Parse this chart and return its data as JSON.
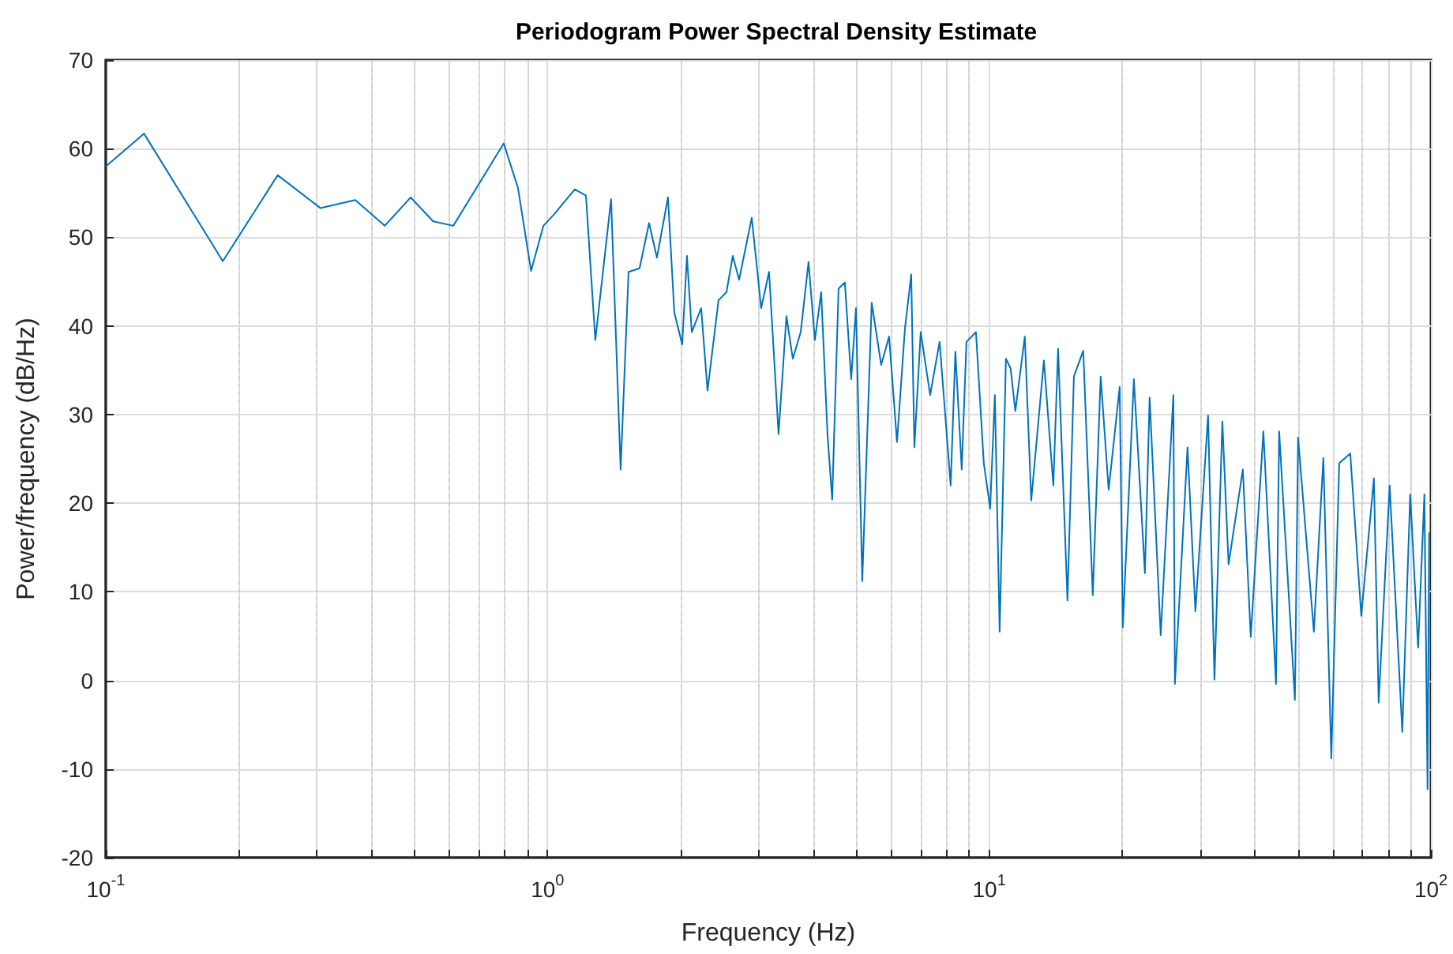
{
  "chart_data": {
    "type": "line",
    "title": "Periodogram Power Spectral Density Estimate",
    "xlabel": "Frequency (Hz)",
    "ylabel": "Power/frequency (dB/Hz)",
    "log": "x",
    "grid": true,
    "line_style": "solid",
    "marker": "none",
    "xlim": [
      0.1,
      100
    ],
    "ylim": [
      -20,
      70
    ],
    "xticks": [
      {
        "value": 0.1,
        "label": "10$^{-1}$"
      },
      {
        "value": 0.2,
        "label": null
      },
      {
        "value": 0.3,
        "label": null
      },
      {
        "value": 0.4,
        "label": null
      },
      {
        "value": 0.5,
        "label": null
      },
      {
        "value": 0.6,
        "label": null
      },
      {
        "value": 0.7,
        "label": null
      },
      {
        "value": 0.8,
        "label": null
      },
      {
        "value": 0.9,
        "label": null
      },
      {
        "value": 1,
        "label": "10$^{0}$"
      },
      {
        "value": 2,
        "label": null
      },
      {
        "value": 3,
        "label": null
      },
      {
        "value": 4,
        "label": null
      },
      {
        "value": 5,
        "label": null
      },
      {
        "value": 6,
        "label": null
      },
      {
        "value": 7,
        "label": null
      },
      {
        "value": 8,
        "label": null
      },
      {
        "value": 9,
        "label": null
      },
      {
        "value": 10,
        "label": "10$^{1}$"
      },
      {
        "value": 20,
        "label": null
      },
      {
        "value": 30,
        "label": null
      },
      {
        "value": 40,
        "label": null
      },
      {
        "value": 50,
        "label": null
      },
      {
        "value": 60,
        "label": null
      },
      {
        "value": 70,
        "label": null
      },
      {
        "value": 80,
        "label": null
      },
      {
        "value": 90,
        "label": null
      },
      {
        "value": 100,
        "label": "10$^{2}$"
      }
    ],
    "yticks": [
      -20,
      -10,
      0,
      10,
      20,
      30,
      40,
      50,
      60,
      70
    ],
    "series": [
      {
        "color": "#0072bd",
        "x": [
          0.1,
          0.122,
          0.184,
          0.245,
          0.306,
          0.367,
          0.428,
          0.49,
          0.551,
          0.612,
          0.796,
          0.857,
          0.918,
          0.979,
          1.04,
          1.1,
          1.153,
          1.222,
          1.283,
          1.393,
          1.464,
          1.526,
          1.616,
          1.698,
          1.769,
          1.874,
          1.937,
          2.018,
          2.069,
          2.121,
          2.228,
          2.303,
          2.439,
          2.542,
          2.627,
          2.715,
          2.9,
          3.046,
          3.174,
          3.335,
          3.475,
          3.592,
          3.743,
          3.899,
          4.03,
          4.165,
          4.304,
          4.411,
          4.56,
          4.712,
          4.87,
          4.993,
          5.16,
          5.42,
          5.695,
          5.934,
          6.184,
          6.445,
          6.66,
          6.77,
          6.997,
          7.35,
          7.722,
          8.18,
          8.384,
          8.665,
          8.882,
          9.333,
          9.723,
          10.05,
          10.3,
          10.56,
          10.91,
          11.18,
          11.46,
          12.04,
          12.45,
          13.3,
          13.97,
          14.32,
          15.04,
          15.55,
          16.33,
          17.16,
          17.88,
          18.64,
          19.74,
          20.07,
          21.26,
          22.52,
          23.08,
          24.45,
          26.12,
          26.33,
          28.12,
          29.3,
          31.3,
          32.36,
          33.72,
          34.83,
          37.52,
          39.1,
          41.76,
          44.6,
          45.34,
          49.22,
          50.04,
          54.33,
          57.09,
          59.5,
          62,
          65.68,
          69.57,
          74.3,
          76.17,
          80.66,
          86.15,
          89.78,
          93.55,
          96.67,
          98.28,
          99.1
        ],
        "values": [
          58,
          61.7,
          47.3,
          57,
          53.3,
          54.2,
          51.3,
          54.5,
          51.8,
          51.3,
          60.6,
          55.6,
          46.2,
          51.3,
          52.7,
          54.2,
          55.4,
          54.7,
          38.4,
          54.3,
          23.8,
          46.1,
          46.5,
          51.6,
          47.7,
          54.5,
          41.5,
          37.9,
          47.9,
          39.3,
          42,
          32.7,
          42.9,
          43.8,
          47.9,
          45.2,
          52.2,
          42,
          46.1,
          27.8,
          41.1,
          36.3,
          39.3,
          47.2,
          38.4,
          43.8,
          27.8,
          20.4,
          44.2,
          44.9,
          34,
          42,
          11.2,
          42.6,
          35.6,
          38.8,
          26.9,
          39.7,
          45.8,
          26.3,
          39.3,
          32.2,
          38.2,
          22,
          37.1,
          23.8,
          38.2,
          39.3,
          24.5,
          19.4,
          32.2,
          5.5,
          36.3,
          35.2,
          30.4,
          38.8,
          20.3,
          36.1,
          22,
          37.4,
          9,
          34.3,
          37.2,
          9.6,
          34.3,
          21.5,
          33.1,
          6,
          34,
          12.1,
          31.9,
          5.1,
          32.2,
          -0.4,
          26.3,
          7.8,
          29.9,
          0.1,
          29.2,
          13.1,
          23.8,
          4.9,
          28.1,
          -0.4,
          28.1,
          -2.2,
          27.4,
          5.5,
          25.1,
          -8.8,
          24.5,
          25.6,
          7.3,
          22.8,
          -2.5,
          22,
          -5.8,
          21,
          3.7,
          21,
          -12.3,
          16.7
        ]
      }
    ]
  }
}
